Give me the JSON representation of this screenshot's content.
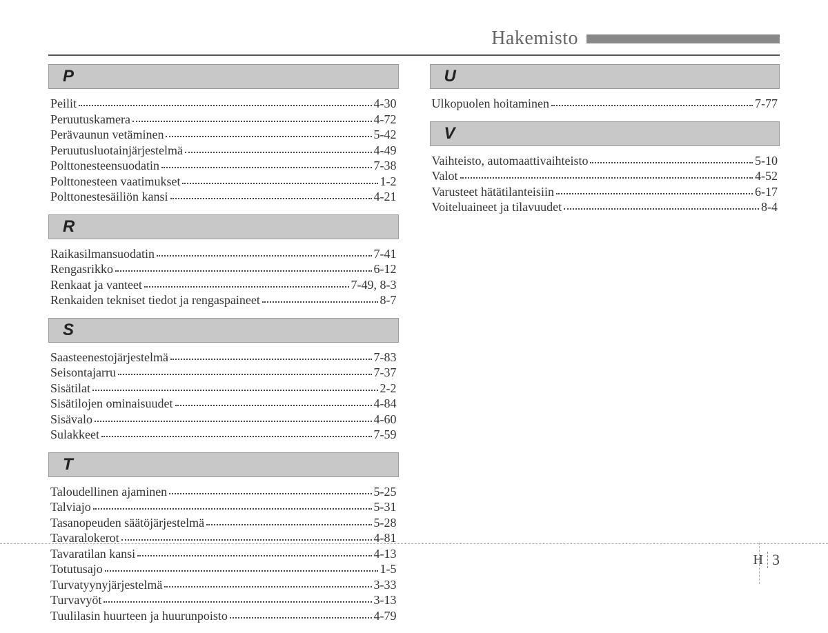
{
  "header": {
    "title": "Hakemisto"
  },
  "footer": {
    "letter": "H",
    "page": "3"
  },
  "leftColumn": [
    {
      "letter": "P",
      "entries": [
        {
          "label": "Peilit",
          "page": "4-30"
        },
        {
          "label": "Peruutuskamera",
          "page": "4-72"
        },
        {
          "label": "Perävaunun vetäminen",
          "page": "5-42"
        },
        {
          "label": "Peruutusluotainjärjestelmä",
          "page": "4-49"
        },
        {
          "label": "Polttonesteensuodatin",
          "page": "7-38"
        },
        {
          "label": "Polttonesteen vaatimukset",
          "page": "1-2"
        },
        {
          "label": "Polttonestesäiliön kansi",
          "page": "4-21"
        }
      ]
    },
    {
      "letter": "R",
      "entries": [
        {
          "label": "Raikasilmansuodatin",
          "page": "7-41"
        },
        {
          "label": "Rengasrikko",
          "page": "6-12"
        },
        {
          "label": "Renkaat ja vanteet",
          "page": "7-49, 8-3"
        },
        {
          "label": "Renkaiden tekniset tiedot ja rengaspaineet",
          "page": "8-7"
        }
      ]
    },
    {
      "letter": "S",
      "entries": [
        {
          "label": "Saasteenestojärjestelmä",
          "page": "7-83"
        },
        {
          "label": "Seisontajarru",
          "page": "7-37"
        },
        {
          "label": "Sisätilat",
          "page": "2-2"
        },
        {
          "label": "Sisätilojen ominaisuudet",
          "page": "4-84"
        },
        {
          "label": "Sisävalo",
          "page": "4-60"
        },
        {
          "label": "Sulakkeet",
          "page": "7-59"
        }
      ]
    },
    {
      "letter": "T",
      "entries": [
        {
          "label": "Taloudellinen ajaminen",
          "page": "5-25"
        },
        {
          "label": "Talviajo",
          "page": "5-31"
        },
        {
          "label": "Tasanopeuden säätöjärjestelmä",
          "page": "5-28"
        },
        {
          "label": "Tavaralokerot",
          "page": "4-81"
        },
        {
          "label": "Tavaratilan kansi",
          "page": "4-13"
        },
        {
          "label": "Totutusajo",
          "page": "1-5"
        },
        {
          "label": "Turvatyynyjärjestelmä",
          "page": "3-33"
        },
        {
          "label": "Turvavyöt",
          "page": "3-13"
        },
        {
          "label": "Tuulilasin huurteen ja huurunpoisto",
          "page": "4-79"
        }
      ]
    }
  ],
  "rightColumn": [
    {
      "letter": "U",
      "entries": [
        {
          "label": "Ulkopuolen hoitaminen",
          "page": "7-77"
        }
      ]
    },
    {
      "letter": "V",
      "entries": [
        {
          "label": "Vaihteisto, automaattivaihteisto",
          "page": "5-10"
        },
        {
          "label": "Valot",
          "page": "4-52"
        },
        {
          "label": "Varusteet hätätilanteisiin",
          "page": "6-17"
        },
        {
          "label": "Voiteluaineet ja tilavuudet",
          "page": "8-4"
        }
      ]
    }
  ]
}
